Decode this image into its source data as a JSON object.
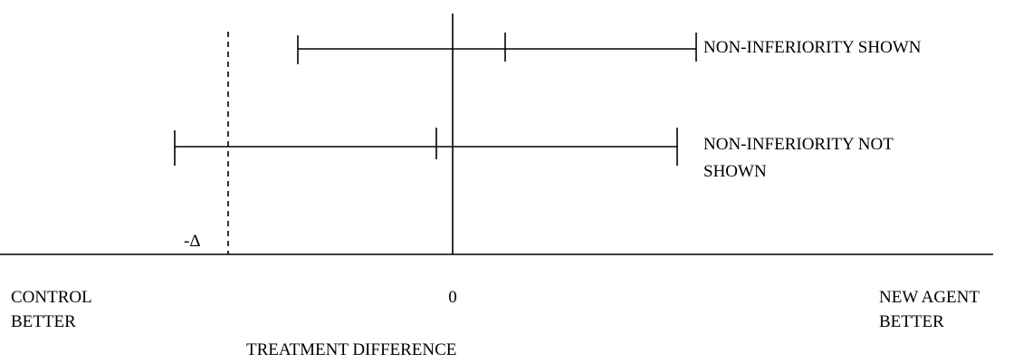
{
  "diagram": {
    "title": "",
    "x_axis_label": "TREATMENT DIFFERENCE",
    "zero_label": "0",
    "margin_label": "-Δ",
    "left_end_label": [
      "CONTROL",
      "BETTER"
    ],
    "right_end_label": [
      "NEW AGENT",
      "BETTER"
    ],
    "intervals": [
      {
        "label_lines": [
          "NON-INFERIORITY SHOWN"
        ]
      },
      {
        "label_lines": [
          "NON-INFERIORITY NOT",
          "SHOWN"
        ]
      }
    ],
    "colors": {
      "line": "#000000",
      "background": "#ffffff"
    }
  }
}
